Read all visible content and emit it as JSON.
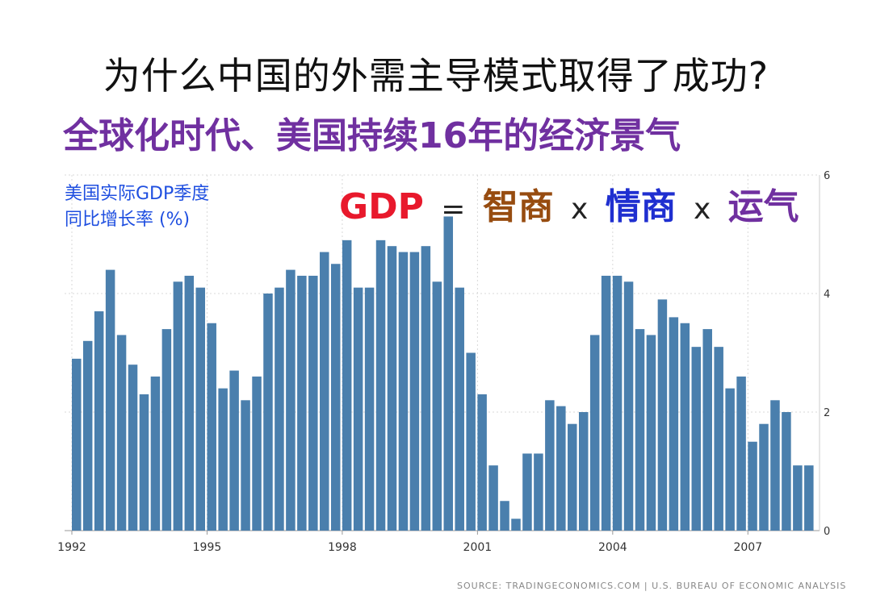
{
  "slide": {
    "title": "为什么中国的外需主导模式取得了成功?",
    "subtitle": "全球化时代、美国持续16年的经济景气",
    "formula": {
      "gdp": "GDP",
      "eq": "=",
      "term1": "智商",
      "x1": "x",
      "term2": "情商",
      "x2": "x",
      "term3": "运气"
    },
    "source": "SOURCE: TRADINGECONOMICS.COM | U.S. BUREAU OF ECONOMIC ANALYSIS",
    "colors": {
      "bar": "#4a7fad",
      "title_purple": "#7030a0",
      "gdp_red": "#e8192c",
      "term1_brown": "#974c10",
      "term2_blue": "#1f2fd0",
      "label_blue": "#1f4fe0"
    }
  },
  "chart_data": {
    "type": "bar",
    "ylabel_lines": [
      "美国实际GDP季度",
      "同比增长率 (%)"
    ],
    "x_tick_labels": [
      "1992",
      "1995",
      "1998",
      "2001",
      "2004",
      "2007"
    ],
    "y_tick_labels": [
      "0",
      "2",
      "4",
      "6"
    ],
    "ylim": [
      0,
      6
    ],
    "grid": true,
    "yaxis_position": "right",
    "x_start_year": 1992,
    "values": [
      2.9,
      3.2,
      3.7,
      4.4,
      3.3,
      2.8,
      2.3,
      2.6,
      3.4,
      4.2,
      4.3,
      4.1,
      3.5,
      2.4,
      2.7,
      2.2,
      2.6,
      4.0,
      4.1,
      4.4,
      4.3,
      4.3,
      4.7,
      4.5,
      4.9,
      4.1,
      4.1,
      4.9,
      4.8,
      4.7,
      4.7,
      4.8,
      4.2,
      5.3,
      4.1,
      3.0,
      2.3,
      1.1,
      0.5,
      0.2,
      1.3,
      1.3,
      2.2,
      2.1,
      1.8,
      2.0,
      3.3,
      4.3,
      4.3,
      4.2,
      3.4,
      3.3,
      3.9,
      3.6,
      3.5,
      3.1,
      3.4,
      3.1,
      2.4,
      2.6,
      1.5,
      1.8,
      2.2,
      2.0,
      1.1,
      1.1
    ]
  }
}
